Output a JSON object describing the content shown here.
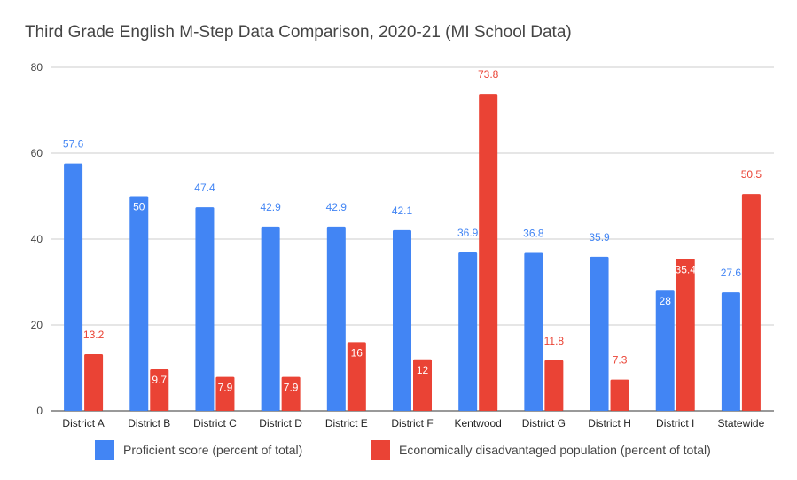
{
  "chart_data": {
    "type": "bar",
    "title": "Third Grade English M-Step Data Comparison, 2020-21 (MI School Data)",
    "categories": [
      "District A",
      "District B",
      "District C",
      "District D",
      "District E",
      "District F",
      "Kentwood",
      "District G",
      "District H",
      "District I",
      "Statewide"
    ],
    "series": [
      {
        "name": "Proficient score (percent of total)",
        "color": "#4285f4",
        "values": [
          57.6,
          50,
          47.4,
          42.9,
          42.9,
          42.1,
          36.9,
          36.8,
          35.9,
          28,
          27.6
        ],
        "labels": [
          "57.6",
          "50",
          "47.4",
          "42.9",
          "42.9",
          "42.1",
          "36.9",
          "36.8",
          "35.9",
          "28",
          "27.6"
        ]
      },
      {
        "name": "Economically disadvantaged population (percent of total)",
        "color": "#ea4335",
        "values": [
          13.2,
          9.7,
          7.9,
          7.9,
          16,
          12,
          73.8,
          11.8,
          7.3,
          35.4,
          50.5
        ],
        "labels": [
          "13.2",
          "9.7",
          "7.9",
          "7.9",
          "16",
          "12",
          "73.8",
          "11.8",
          "7.3",
          "35.4",
          "50.5"
        ]
      }
    ],
    "ylim": [
      0,
      80
    ],
    "yticks": [
      "0",
      "20",
      "40",
      "60",
      "80"
    ],
    "grid": true,
    "legend_position": "bottom"
  }
}
